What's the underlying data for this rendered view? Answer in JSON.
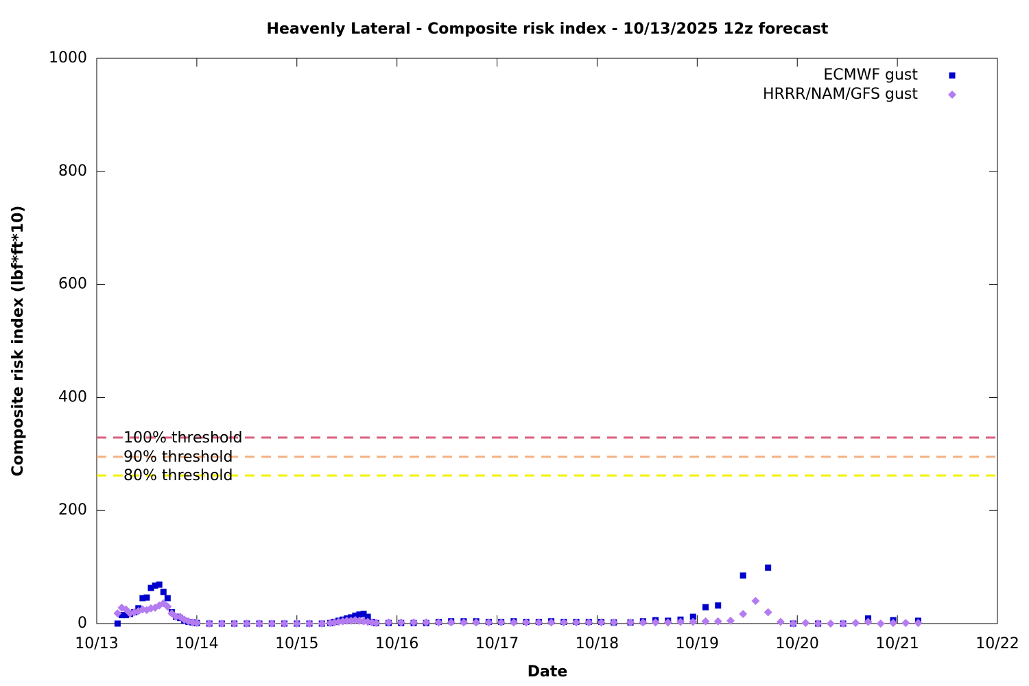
{
  "chart_data": {
    "type": "scatter",
    "title": "Heavenly Lateral - Composite risk index - 10/13/2025 12z forecast",
    "xlabel": "Date",
    "ylabel": "Composite risk index (lbf*ft*10)",
    "xlim": [
      0,
      216
    ],
    "xticks": [
      {
        "value": 0,
        "label": "10/13"
      },
      {
        "value": 24,
        "label": "10/14"
      },
      {
        "value": 48,
        "label": "10/15"
      },
      {
        "value": 72,
        "label": "10/16"
      },
      {
        "value": 96,
        "label": "10/17"
      },
      {
        "value": 120,
        "label": "10/18"
      },
      {
        "value": 144,
        "label": "10/19"
      },
      {
        "value": 168,
        "label": "10/20"
      },
      {
        "value": 192,
        "label": "10/21"
      },
      {
        "value": 216,
        "label": "10/22"
      }
    ],
    "ylim": [
      0,
      1000
    ],
    "yticks": [
      0,
      200,
      400,
      600,
      800,
      1000
    ],
    "legend": "top-right",
    "thresholds": [
      {
        "label": "100% threshold",
        "value": 329,
        "color": "#d9607f"
      },
      {
        "label": "90% threshold",
        "value": 295,
        "color": "#f4b183"
      },
      {
        "label": "80% threshold",
        "value": 262,
        "color": "#f2f200"
      }
    ],
    "series": [
      {
        "name": "ECMWF gust",
        "color": "#0000cc",
        "marker": "square",
        "x": [
          5,
          6,
          7,
          8,
          9,
          10,
          11,
          12,
          13,
          14,
          15,
          16,
          17,
          18,
          19,
          20,
          21,
          22,
          23,
          24,
          27,
          30,
          33,
          36,
          39,
          42,
          45,
          48,
          51,
          54,
          56,
          57,
          58,
          59,
          60,
          61,
          62,
          63,
          64,
          65,
          66,
          67,
          70,
          73,
          76,
          79,
          82,
          85,
          88,
          91,
          94,
          97,
          100,
          103,
          106,
          109,
          112,
          115,
          118,
          121,
          124,
          128,
          131,
          134,
          137,
          140,
          143,
          146,
          149,
          155,
          161,
          167,
          173,
          179,
          185,
          191,
          197
        ],
        "values": [
          0,
          15,
          15,
          17,
          20,
          27,
          45,
          46,
          63,
          67,
          69,
          56,
          45,
          20,
          12,
          10,
          5,
          3,
          2,
          1,
          0,
          0,
          0,
          0,
          0,
          0,
          0,
          0,
          0,
          0,
          1,
          3,
          5,
          7,
          9,
          11,
          14,
          16,
          17,
          12,
          3,
          1,
          1,
          1,
          1,
          1,
          3,
          4,
          4,
          4,
          3,
          3,
          4,
          3,
          3,
          4,
          3,
          3,
          3,
          3,
          2,
          2,
          4,
          6,
          5,
          7,
          12,
          29,
          32,
          85,
          99,
          0,
          0,
          0,
          9,
          6,
          5
        ]
      },
      {
        "name": "HRRR/NAM/GFS gust",
        "color": "#b47cf0",
        "marker": "diamond",
        "x": [
          5,
          6,
          7,
          8,
          9,
          10,
          11,
          12,
          13,
          14,
          15,
          16,
          17,
          18,
          19,
          20,
          21,
          22,
          23,
          24,
          27,
          30,
          33,
          36,
          39,
          42,
          45,
          48,
          51,
          54,
          56,
          57,
          58,
          59,
          60,
          61,
          62,
          63,
          64,
          65,
          66,
          67,
          70,
          73,
          76,
          79,
          82,
          85,
          88,
          91,
          94,
          97,
          100,
          103,
          106,
          109,
          112,
          115,
          118,
          121,
          124,
          128,
          131,
          134,
          137,
          140,
          143,
          146,
          149,
          152,
          155,
          158,
          161,
          164,
          167,
          170,
          173,
          176,
          179,
          182,
          185,
          188,
          191,
          194,
          197
        ],
        "values": [
          18,
          28,
          25,
          18,
          20,
          22,
          25,
          24,
          27,
          28,
          32,
          36,
          30,
          18,
          12,
          12,
          7,
          4,
          2,
          1,
          0,
          0,
          0,
          0,
          0,
          0,
          0,
          0,
          0,
          0,
          1,
          2,
          3,
          4,
          5,
          5,
          6,
          5,
          4,
          3,
          2,
          1,
          2,
          2,
          2,
          2,
          2,
          2,
          2,
          2,
          2,
          2,
          2,
          2,
          2,
          2,
          2,
          2,
          2,
          2,
          2,
          2,
          2,
          2,
          2,
          3,
          3,
          4,
          4,
          5,
          17,
          40,
          20,
          3,
          0,
          1,
          0,
          0,
          0,
          1,
          3,
          0,
          1,
          1,
          1
        ]
      }
    ]
  }
}
